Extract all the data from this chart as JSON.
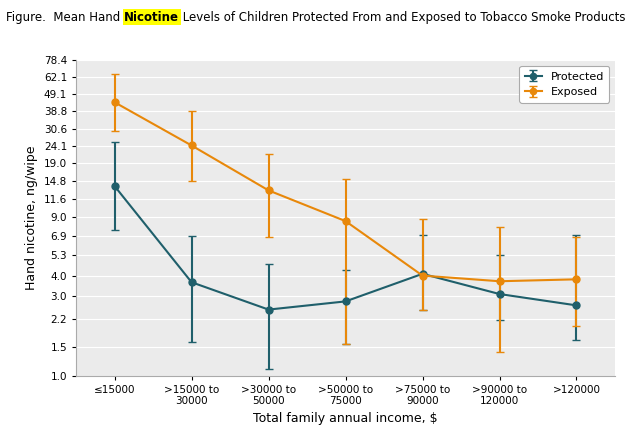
{
  "title_prefix": "Figure.  Mean Hand ",
  "title_highlight": "Nicotine",
  "title_suffix": " Levels of Children Protected From and Exposed to Tobacco Smoke Products",
  "xlabel": "Total family annual income, $",
  "ylabel": "Hand nicotine, ng/wipe",
  "categories": [
    "≤15000",
    ">15000 to\n30000",
    ">30000 to\n50000",
    ">50000 to\n75000",
    ">75000 to\n90000",
    ">90000 to\n120000",
    ">120000"
  ],
  "protected_y": [
    13.8,
    3.65,
    2.5,
    2.8,
    4.1,
    3.1,
    2.65
  ],
  "protected_ci_low": [
    7.5,
    1.6,
    1.1,
    1.55,
    2.5,
    2.15,
    1.65
  ],
  "protected_ci_high": [
    25.5,
    6.9,
    4.7,
    4.3,
    7.0,
    5.3,
    7.0
  ],
  "exposed_y": [
    44.0,
    24.2,
    13.0,
    8.5,
    4.0,
    3.7,
    3.8
  ],
  "exposed_ci_low": [
    29.5,
    14.8,
    6.8,
    1.55,
    2.5,
    1.4,
    2.0
  ],
  "exposed_ci_high": [
    65.0,
    38.8,
    21.5,
    15.2,
    8.8,
    7.8,
    6.8
  ],
  "protected_color": "#1f5f6b",
  "exposed_color": "#e8880a",
  "yticks": [
    1.0,
    1.5,
    2.2,
    3.0,
    4.0,
    5.3,
    6.9,
    9.0,
    11.6,
    14.8,
    19.0,
    24.1,
    30.6,
    38.8,
    49.1,
    62.1,
    78.4
  ],
  "ytick_labels": [
    "1.0",
    "1.5",
    "2.2",
    "3.0",
    "4.0",
    "5.3",
    "6.9",
    "9.0",
    "11.6",
    "14.8",
    "19.0",
    "24.1",
    "30.6",
    "38.8",
    "49.1",
    "62.1",
    "78.4"
  ],
  "background_color": "#ebebeb",
  "highlight_color": "#ffff00",
  "fig_width": 6.34,
  "fig_height": 4.32,
  "dpi": 100
}
